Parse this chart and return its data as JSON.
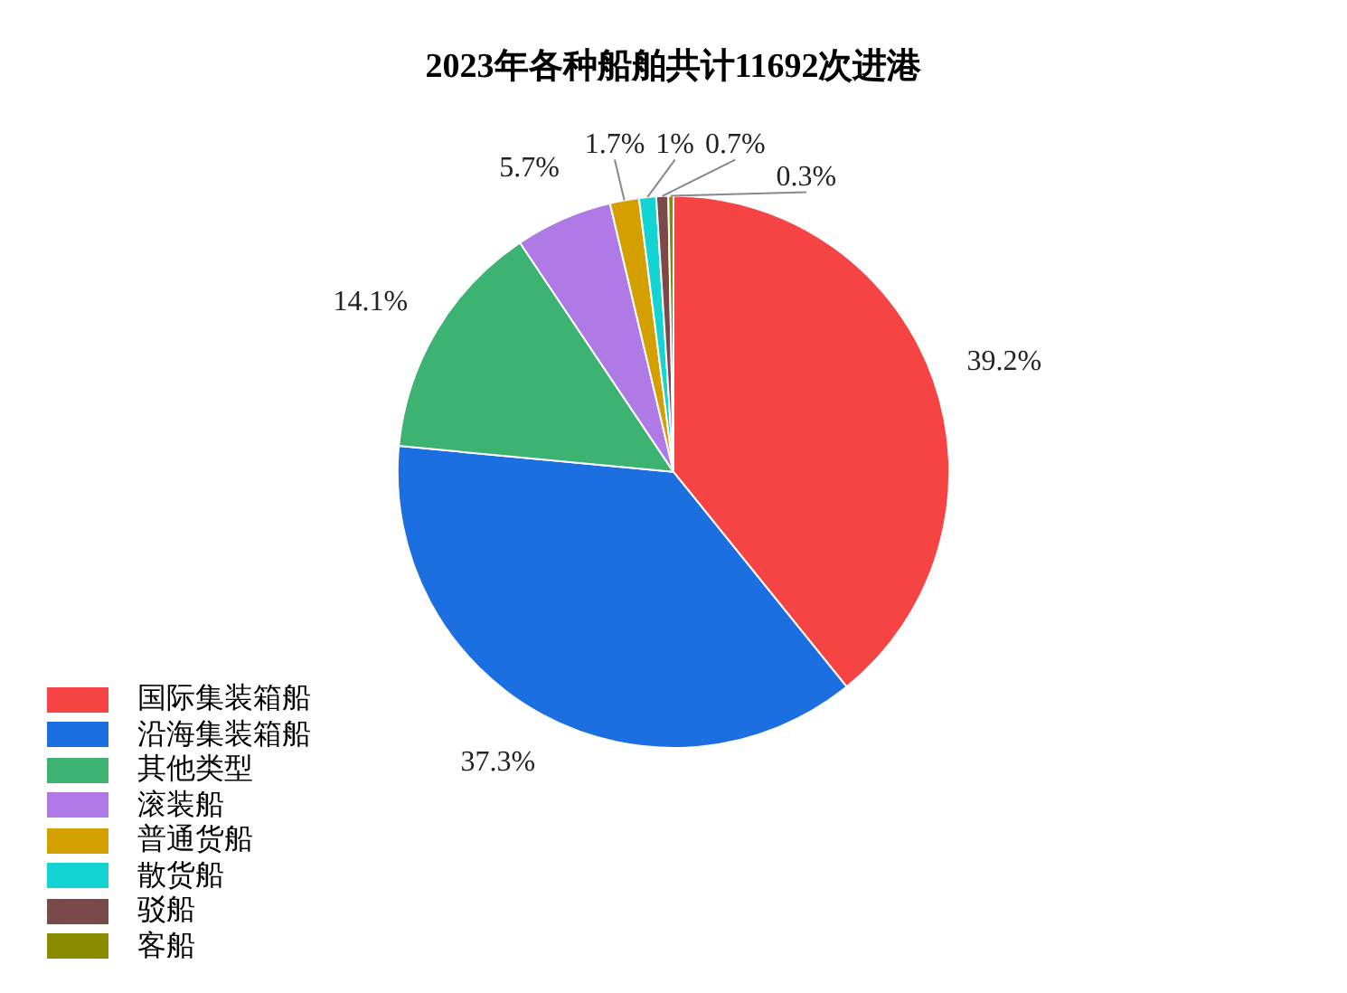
{
  "chart_data": {
    "type": "pie",
    "title": "2023年各种船舶共计11692次进港",
    "categories": [
      "国际集装箱船",
      "沿海集装箱船",
      "其他类型",
      "滚装船",
      "普通货船",
      "散货船",
      "驳船",
      "客船"
    ],
    "values": [
      39.2,
      37.3,
      14.1,
      5.7,
      1.7,
      1,
      0.7,
      0.3
    ],
    "colors": [
      "#f64343",
      "#1c6fe0",
      "#3cb371",
      "#b07ae6",
      "#d4a000",
      "#14d3d3",
      "#7a4a4a",
      "#8a8a00"
    ],
    "value_labels": [
      "39.2%",
      "37.3%",
      "14.1%",
      "5.7%",
      "1.7%",
      "1%",
      "0.7%",
      "0.3%"
    ],
    "legend": "bottom left"
  }
}
